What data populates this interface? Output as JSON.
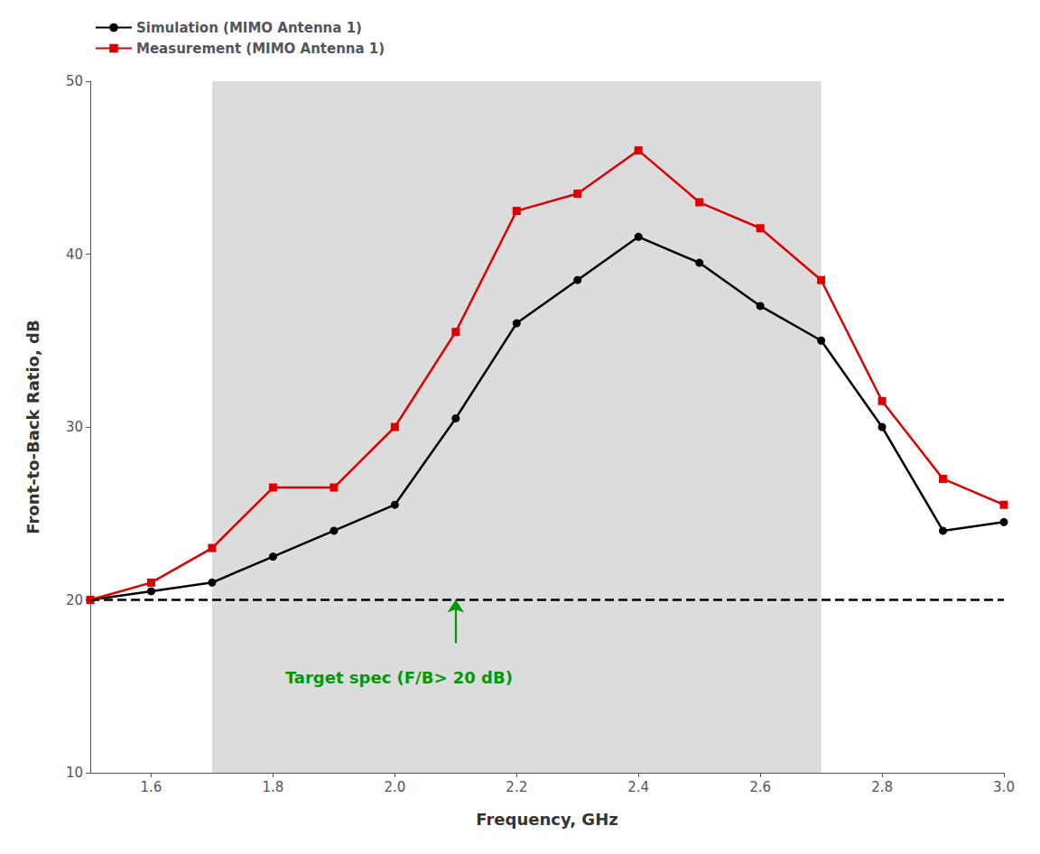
{
  "chart_data": {
    "type": "line",
    "xlabel": "Frequency, GHz",
    "ylabel": "Front-to-Back Ratio, dB",
    "x": [
      1.5,
      1.6,
      1.7,
      1.8,
      1.9,
      2.0,
      2.1,
      2.2,
      2.3,
      2.4,
      2.5,
      2.6,
      2.7,
      2.8,
      2.9,
      3.0
    ],
    "series": [
      {
        "name": "Simulation (MIMO Antenna 1)",
        "color": "#000000",
        "marker": "circle",
        "line_style": "solid",
        "values": [
          20.0,
          20.5,
          21.0,
          22.5,
          24.0,
          25.5,
          30.5,
          36.0,
          38.5,
          41.0,
          39.5,
          37.0,
          35.0,
          30.0,
          24.0,
          24.5
        ]
      },
      {
        "name": "Measurement (MIMO Antenna 1)",
        "color": "#dd0000",
        "marker": "square",
        "line_style": "solid",
        "values": [
          20.0,
          21.0,
          23.0,
          26.5,
          26.5,
          30.0,
          35.5,
          42.5,
          43.5,
          46.0,
          43.0,
          41.5,
          38.5,
          31.5,
          27.0,
          25.5
        ]
      }
    ],
    "xlim": [
      1.5,
      3.0
    ],
    "ylim": [
      10,
      50
    ],
    "xticks": [
      1.6,
      1.8,
      {
        "value": 2.0,
        "label": "2.0"
      },
      2.2,
      2.4,
      2.6,
      2.8,
      {
        "value": 3.0,
        "label": "3.0"
      }
    ],
    "yticks": [
      10,
      20,
      30,
      40,
      50
    ],
    "grid": false,
    "legend": "upper left",
    "shaded_region": {
      "x_start": 1.7,
      "x_end": 2.7,
      "color": "#dcdcdc"
    },
    "reference_line": {
      "y": 20.0,
      "color": "#000000",
      "line_style": "dashed"
    },
    "annotation": {
      "text": "Target spec (F/B> 20 dB)",
      "color": "#009900",
      "x": 1.82,
      "y": 15.5,
      "arrow_x": 2.1,
      "arrow_from_y": 17.5,
      "arrow_to_y": 20.0
    }
  }
}
